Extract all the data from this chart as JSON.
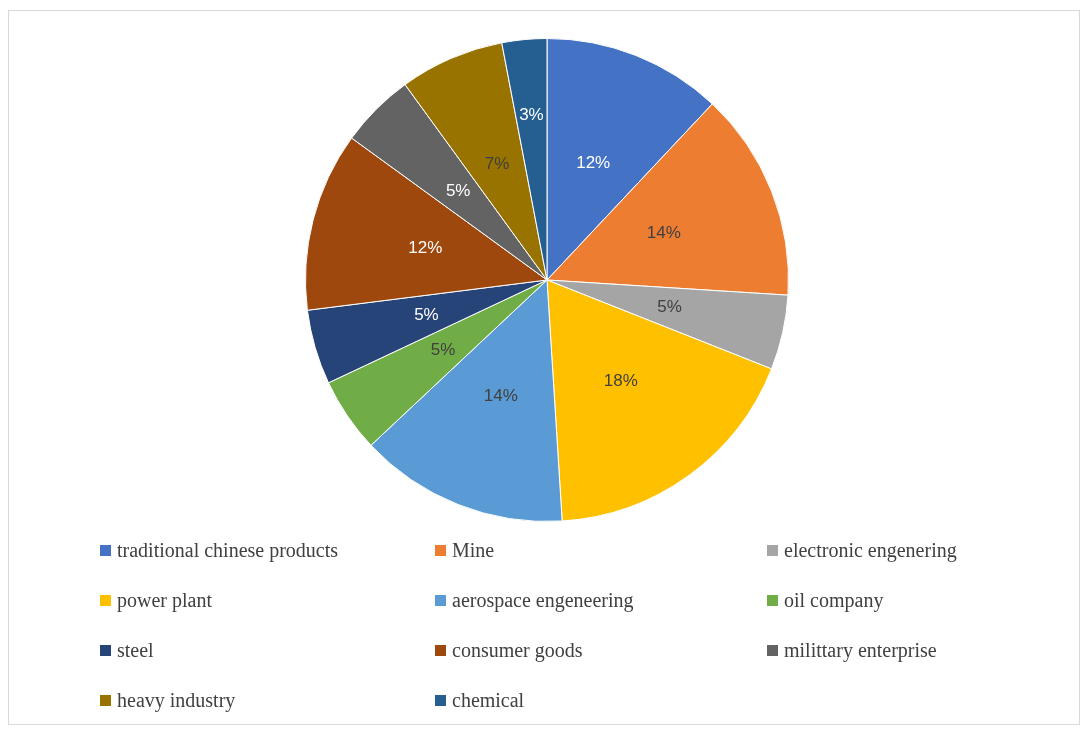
{
  "chart_data": {
    "type": "pie",
    "categories": [
      "traditional chinese products",
      "Mine",
      "electronic engenering",
      "power plant",
      "aerospace engeneering",
      "oil company",
      "steel",
      "consumer goods",
      "milittary enterprise",
      "heavy industry",
      "chemical"
    ],
    "values": [
      12,
      14,
      5,
      18,
      14,
      5,
      5,
      12,
      5,
      7,
      3
    ],
    "value_labels": [
      "12%",
      "14%",
      "5%",
      "18%",
      "14%",
      "5%",
      "5%",
      "12%",
      "5%",
      "7%",
      "3%"
    ],
    "colors": [
      "#4472c4",
      "#ed7d31",
      "#a5a5a5",
      "#ffc000",
      "#5b9bd5",
      "#70ad47",
      "#264478",
      "#9e480e",
      "#636363",
      "#997300",
      "#255e91"
    ],
    "legend": "bottom"
  }
}
